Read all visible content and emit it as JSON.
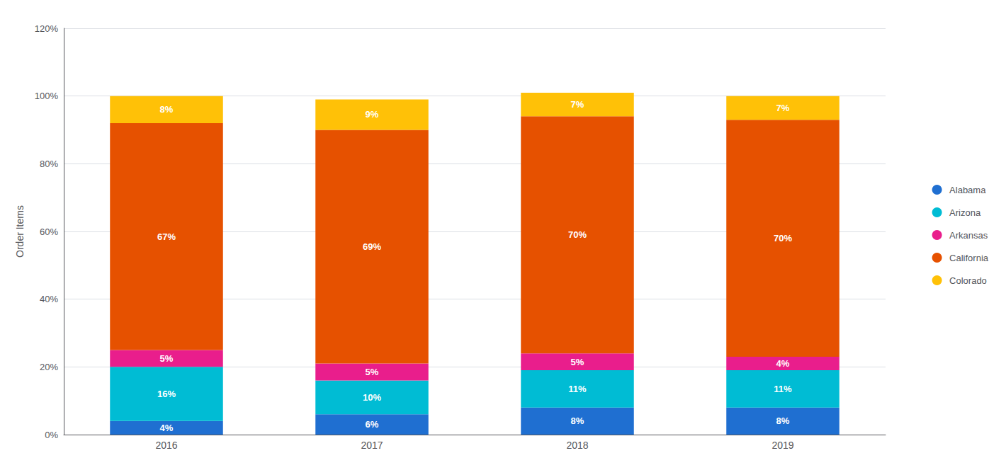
{
  "chart_data": {
    "type": "bar",
    "stacked": true,
    "data_labels": true,
    "ylabel": "Order Items",
    "categories": [
      "2016",
      "2017",
      "2018",
      "2019"
    ],
    "series": [
      {
        "name": "Alabama",
        "color": "#1F6FD1",
        "values": [
          4,
          6,
          8,
          8
        ],
        "value_labels": [
          "4%",
          "6%",
          "8%",
          "8%"
        ]
      },
      {
        "name": "Arizona",
        "color": "#00BCD4",
        "values": [
          16,
          10,
          11,
          11
        ],
        "value_labels": [
          "16%",
          "10%",
          "11%",
          "11%"
        ]
      },
      {
        "name": "Arkansas",
        "color": "#E91E8C",
        "values": [
          5,
          5,
          5,
          4
        ],
        "value_labels": [
          "5%",
          "5%",
          "5%",
          "4%"
        ]
      },
      {
        "name": "California",
        "color": "#E65100",
        "values": [
          67,
          69,
          70,
          70
        ],
        "value_labels": [
          "67%",
          "69%",
          "70%",
          "70%"
        ]
      },
      {
        "name": "Colorado",
        "color": "#FFC107",
        "values": [
          8,
          9,
          7,
          7
        ],
        "value_labels": [
          "8%",
          "9%",
          "7%",
          "7%"
        ]
      }
    ],
    "ylim": [
      0,
      120
    ],
    "yticks": [
      {
        "value": 0,
        "label": "0%"
      },
      {
        "value": 20,
        "label": "20%"
      },
      {
        "value": 40,
        "label": "40%"
      },
      {
        "value": 60,
        "label": "60%"
      },
      {
        "value": 80,
        "label": "80%"
      },
      {
        "value": 100,
        "label": "100%"
      },
      {
        "value": 120,
        "label": "120%"
      }
    ],
    "grid": true,
    "legend": "right"
  }
}
